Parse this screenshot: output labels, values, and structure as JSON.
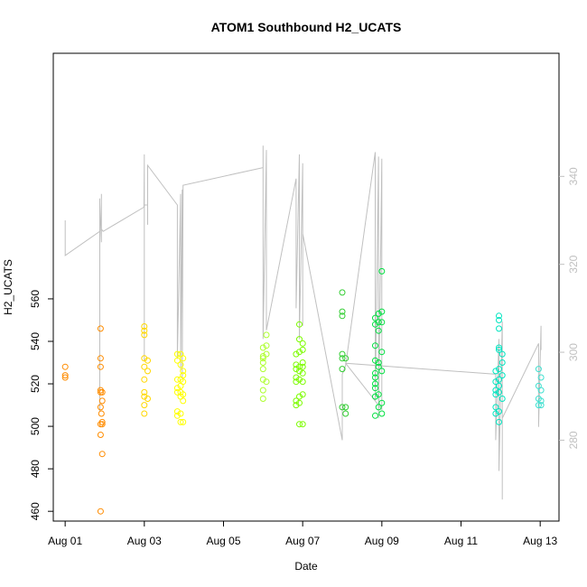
{
  "chart_data": {
    "type": "scatter",
    "title": "ATOM1 Southbound H2_UCATS",
    "xlabel": "Date",
    "ylabel": "H2_UCATS",
    "xlim": [
      "2016-07-31T16:48",
      "2016-08-13T11:24"
    ],
    "ylim": [
      455.4,
      675.6
    ],
    "x_ticks": [
      "Aug 01",
      "Aug 03",
      "Aug 05",
      "Aug 07",
      "Aug 09",
      "Aug 11",
      "Aug 13"
    ],
    "x_tick_dates": [
      "2016-08-01",
      "2016-08-03",
      "2016-08-05",
      "2016-08-07",
      "2016-08-09",
      "2016-08-11",
      "2016-08-13"
    ],
    "y_ticks": [
      460,
      480,
      500,
      520,
      540,
      560
    ],
    "secondary_axis": {
      "color": "#c0c0c0",
      "ticks": [
        280,
        300,
        320,
        340
      ],
      "ylim": [
        261.6,
        368.0
      ]
    },
    "colors": {
      "background": "#ffffff",
      "axis": "#000000",
      "secondary_line": "#c0c0c0"
    },
    "series": [
      {
        "color": "#ff8c00",
        "points": [
          [
            "2016-08-01T00:00",
            528
          ],
          [
            "2016-08-01T00:00",
            523
          ],
          [
            "2016-08-01T00:00",
            524
          ],
          [
            "2016-08-01T21:30",
            546
          ],
          [
            "2016-08-01T21:30",
            532
          ],
          [
            "2016-08-01T21:30",
            528
          ],
          [
            "2016-08-01T21:30",
            517
          ],
          [
            "2016-08-01T21:30",
            516
          ],
          [
            "2016-08-01T21:30",
            509
          ],
          [
            "2016-08-01T21:30",
            501
          ],
          [
            "2016-08-01T21:30",
            496
          ],
          [
            "2016-08-01T21:30",
            460
          ],
          [
            "2016-08-01T22:30",
            516
          ],
          [
            "2016-08-01T22:30",
            512
          ],
          [
            "2016-08-01T22:30",
            502
          ],
          [
            "2016-08-01T22:30",
            501
          ],
          [
            "2016-08-01T22:30",
            487
          ],
          [
            "2016-08-01T22:00",
            506
          ]
        ]
      },
      {
        "color": "#ffd700",
        "points": [
          [
            "2016-08-03T00:00",
            547
          ],
          [
            "2016-08-03T00:00",
            545
          ],
          [
            "2016-08-03T00:00",
            543
          ],
          [
            "2016-08-03T00:00",
            532
          ],
          [
            "2016-08-03T00:00",
            528
          ],
          [
            "2016-08-03T00:00",
            522
          ],
          [
            "2016-08-03T00:00",
            516
          ],
          [
            "2016-08-03T00:00",
            514
          ],
          [
            "2016-08-03T00:00",
            510
          ],
          [
            "2016-08-03T00:00",
            506
          ],
          [
            "2016-08-03T02:00",
            531
          ],
          [
            "2016-08-03T02:00",
            526
          ],
          [
            "2016-08-03T02:00",
            513
          ]
        ]
      },
      {
        "color": "#ffff00",
        "points": [
          [
            "2016-08-03T20:00",
            534
          ],
          [
            "2016-08-03T20:00",
            531
          ],
          [
            "2016-08-03T20:00",
            522
          ],
          [
            "2016-08-03T20:00",
            518
          ],
          [
            "2016-08-03T20:00",
            516
          ],
          [
            "2016-08-03T20:00",
            507
          ],
          [
            "2016-08-03T20:00",
            505
          ],
          [
            "2016-08-03T22:00",
            534
          ],
          [
            "2016-08-03T22:00",
            529
          ],
          [
            "2016-08-03T22:00",
            522
          ],
          [
            "2016-08-03T22:00",
            519
          ],
          [
            "2016-08-03T22:00",
            516
          ],
          [
            "2016-08-03T22:00",
            514
          ],
          [
            "2016-08-03T22:00",
            506
          ],
          [
            "2016-08-03T22:00",
            502
          ],
          [
            "2016-08-03T23:30",
            532
          ],
          [
            "2016-08-03T23:30",
            526
          ],
          [
            "2016-08-03T23:30",
            524
          ],
          [
            "2016-08-03T23:30",
            521
          ],
          [
            "2016-08-03T23:30",
            515
          ],
          [
            "2016-08-03T23:30",
            512
          ],
          [
            "2016-08-03T23:30",
            502
          ]
        ]
      },
      {
        "color": "#adff2f",
        "points": [
          [
            "2016-08-06T00:00",
            537
          ],
          [
            "2016-08-06T00:00",
            533
          ],
          [
            "2016-08-06T00:00",
            532
          ],
          [
            "2016-08-06T00:00",
            530
          ],
          [
            "2016-08-06T00:00",
            527
          ],
          [
            "2016-08-06T00:00",
            522
          ],
          [
            "2016-08-06T00:00",
            517
          ],
          [
            "2016-08-06T00:00",
            513
          ],
          [
            "2016-08-06T02:00",
            543
          ],
          [
            "2016-08-06T02:00",
            538
          ],
          [
            "2016-08-06T02:00",
            534
          ],
          [
            "2016-08-06T02:00",
            521
          ]
        ]
      },
      {
        "color": "#7cfc00",
        "points": [
          [
            "2016-08-06T20:00",
            534
          ],
          [
            "2016-08-06T20:00",
            529
          ],
          [
            "2016-08-06T20:00",
            527
          ],
          [
            "2016-08-06T20:00",
            523
          ],
          [
            "2016-08-06T20:00",
            521
          ],
          [
            "2016-08-06T20:00",
            512
          ],
          [
            "2016-08-06T20:00",
            510
          ],
          [
            "2016-08-06T22:00",
            548
          ],
          [
            "2016-08-06T22:00",
            541
          ],
          [
            "2016-08-06T22:00",
            535
          ],
          [
            "2016-08-06T22:00",
            528
          ],
          [
            "2016-08-06T22:00",
            526
          ],
          [
            "2016-08-06T22:00",
            522
          ],
          [
            "2016-08-06T22:00",
            514
          ],
          [
            "2016-08-06T22:00",
            511
          ],
          [
            "2016-08-06T22:00",
            501
          ],
          [
            "2016-08-07T00:00",
            539
          ],
          [
            "2016-08-07T00:00",
            536
          ],
          [
            "2016-08-07T00:00",
            530
          ],
          [
            "2016-08-07T00:00",
            528
          ],
          [
            "2016-08-07T00:00",
            525
          ],
          [
            "2016-08-07T00:00",
            521
          ],
          [
            "2016-08-07T00:00",
            515
          ],
          [
            "2016-08-07T00:00",
            501
          ]
        ]
      },
      {
        "color": "#32cd32",
        "points": [
          [
            "2016-08-08T00:00",
            563
          ],
          [
            "2016-08-08T00:00",
            554
          ],
          [
            "2016-08-08T00:00",
            552
          ],
          [
            "2016-08-08T00:00",
            534
          ],
          [
            "2016-08-08T00:00",
            532
          ],
          [
            "2016-08-08T00:00",
            527
          ],
          [
            "2016-08-08T00:00",
            509
          ],
          [
            "2016-08-08T02:00",
            532
          ],
          [
            "2016-08-08T02:00",
            509
          ],
          [
            "2016-08-08T02:00",
            506
          ]
        ]
      },
      {
        "color": "#00e040",
        "points": [
          [
            "2016-08-08T20:00",
            551
          ],
          [
            "2016-08-08T20:00",
            548
          ],
          [
            "2016-08-08T20:00",
            538
          ],
          [
            "2016-08-08T20:00",
            531
          ],
          [
            "2016-08-08T20:00",
            525
          ],
          [
            "2016-08-08T20:00",
            523
          ],
          [
            "2016-08-08T20:00",
            520
          ],
          [
            "2016-08-08T20:00",
            518
          ],
          [
            "2016-08-08T20:00",
            514
          ],
          [
            "2016-08-08T20:00",
            505
          ],
          [
            "2016-08-08T22:00",
            553
          ],
          [
            "2016-08-08T22:00",
            549
          ],
          [
            "2016-08-08T22:00",
            545
          ],
          [
            "2016-08-08T22:00",
            530
          ],
          [
            "2016-08-08T22:00",
            528
          ],
          [
            "2016-08-08T22:00",
            515
          ],
          [
            "2016-08-08T22:00",
            509
          ],
          [
            "2016-08-09T00:00",
            573
          ],
          [
            "2016-08-09T00:00",
            554
          ],
          [
            "2016-08-09T00:00",
            549
          ],
          [
            "2016-08-09T00:00",
            535
          ],
          [
            "2016-08-09T00:00",
            526
          ],
          [
            "2016-08-09T00:00",
            511
          ],
          [
            "2016-08-09T00:00",
            506
          ]
        ]
      },
      {
        "color": "#00e5c0",
        "points": [
          [
            "2016-08-11T21:00",
            526
          ],
          [
            "2016-08-11T21:00",
            521
          ],
          [
            "2016-08-11T21:00",
            517
          ],
          [
            "2016-08-11T21:00",
            515
          ],
          [
            "2016-08-11T21:00",
            509
          ],
          [
            "2016-08-11T21:00",
            506
          ],
          [
            "2016-08-11T23:00",
            552
          ],
          [
            "2016-08-11T23:00",
            550
          ],
          [
            "2016-08-11T23:00",
            546
          ],
          [
            "2016-08-11T23:00",
            537
          ],
          [
            "2016-08-11T23:00",
            536
          ],
          [
            "2016-08-11T23:00",
            527
          ],
          [
            "2016-08-11T23:00",
            522
          ],
          [
            "2016-08-11T23:00",
            519
          ],
          [
            "2016-08-11T23:00",
            516
          ],
          [
            "2016-08-11T23:00",
            507
          ],
          [
            "2016-08-11T23:00",
            502
          ],
          [
            "2016-08-12T01:00",
            534
          ],
          [
            "2016-08-12T01:00",
            530
          ],
          [
            "2016-08-12T01:00",
            524
          ],
          [
            "2016-08-12T01:00",
            513
          ]
        ]
      },
      {
        "color": "#40e0d0",
        "points": [
          [
            "2016-08-12T23:00",
            527
          ],
          [
            "2016-08-12T23:00",
            519
          ],
          [
            "2016-08-12T23:00",
            513
          ],
          [
            "2016-08-12T23:00",
            510
          ],
          [
            "2016-08-13T00:30",
            523
          ],
          [
            "2016-08-13T00:30",
            517
          ],
          [
            "2016-08-13T00:30",
            512
          ],
          [
            "2016-08-13T00:30",
            510
          ]
        ]
      }
    ],
    "secondary_line": {
      "color": "#c0c0c0",
      "points": [
        [
          "2016-08-01T00:00",
          330.0
        ],
        [
          "2016-08-01T00:00",
          322.0
        ],
        [
          "2016-08-01T21:00",
          327.5
        ],
        [
          "2016-08-01T21:00",
          292.0
        ],
        [
          "2016-08-01T21:00",
          335.0
        ],
        [
          "2016-08-01T21:00",
          286.5
        ],
        [
          "2016-08-01T21:00",
          330.0
        ],
        [
          "2016-08-01T21:00",
          334.0
        ],
        [
          "2016-08-01T22:00",
          325.0
        ],
        [
          "2016-08-01T22:00",
          336.0
        ],
        [
          "2016-08-01T22:00",
          328.0
        ],
        [
          "2016-08-01T23:00",
          327.5
        ],
        [
          "2016-08-02T23:45",
          333.0
        ],
        [
          "2016-08-03T00:00",
          343.5
        ],
        [
          "2016-08-03T00:00",
          298.0
        ],
        [
          "2016-08-03T00:00",
          345.0
        ],
        [
          "2016-08-03T00:00",
          333.5
        ],
        [
          "2016-08-03T02:00",
          333.5
        ],
        [
          "2016-08-03T02:00",
          329.0
        ],
        [
          "2016-08-03T02:00",
          342.5
        ],
        [
          "2016-08-03T20:00",
          333.5
        ],
        [
          "2016-08-03T20:00",
          327.0
        ],
        [
          "2016-08-03T20:00",
          298.5
        ],
        [
          "2016-08-03T22:00",
          336.0
        ],
        [
          "2016-08-03T22:00",
          296.0
        ],
        [
          "2016-08-03T23:00",
          337.0
        ],
        [
          "2016-08-03T23:00",
          294.0
        ],
        [
          "2016-08-03T23:30",
          338.0
        ],
        [
          "2016-08-06T00:00",
          342.0
        ],
        [
          "2016-08-06T00:00",
          347.0
        ],
        [
          "2016-08-06T00:00",
          303.0
        ],
        [
          "2016-08-06T02:00",
          346.0
        ],
        [
          "2016-08-06T02:00",
          305.0
        ],
        [
          "2016-08-06T20:00",
          339.5
        ],
        [
          "2016-08-06T20:00",
          310.0
        ],
        [
          "2016-08-06T22:00",
          345.0
        ],
        [
          "2016-08-06T22:00",
          303.0
        ],
        [
          "2016-08-07T00:00",
          343.0
        ],
        [
          "2016-08-07T00:00",
          306.0
        ],
        [
          "2016-08-07T00:00",
          327.0
        ],
        [
          "2016-08-08T00:00",
          280.0
        ],
        [
          "2016-08-08T00:00",
          295.0
        ],
        [
          "2016-08-08T02:00",
          297.0
        ],
        [
          "2016-08-08T20:00",
          345.5
        ],
        [
          "2016-08-08T20:00",
          289.0
        ],
        [
          "2016-08-08T22:00",
          344.5
        ],
        [
          "2016-08-08T22:00",
          285.0
        ],
        [
          "2016-08-09T00:00",
          344.0
        ],
        [
          "2016-08-09T00:00",
          287.0
        ],
        [
          "2016-08-08T02:00",
          297.5
        ],
        [
          "2016-08-11T21:00",
          295.0
        ],
        [
          "2016-08-11T21:00",
          280.0
        ],
        [
          "2016-08-11T23:00",
          303.0
        ],
        [
          "2016-08-11T23:00",
          273.0
        ],
        [
          "2016-08-12T01:00",
          307.0
        ],
        [
          "2016-08-12T01:00",
          266.5
        ],
        [
          "2016-08-12T01:00",
          285.0
        ],
        [
          "2016-08-12T23:00",
          302.0
        ],
        [
          "2016-08-12T23:00",
          283.0
        ],
        [
          "2016-08-13T00:30",
          306.0
        ],
        [
          "2016-08-13T00:30",
          300.5
        ]
      ]
    }
  }
}
